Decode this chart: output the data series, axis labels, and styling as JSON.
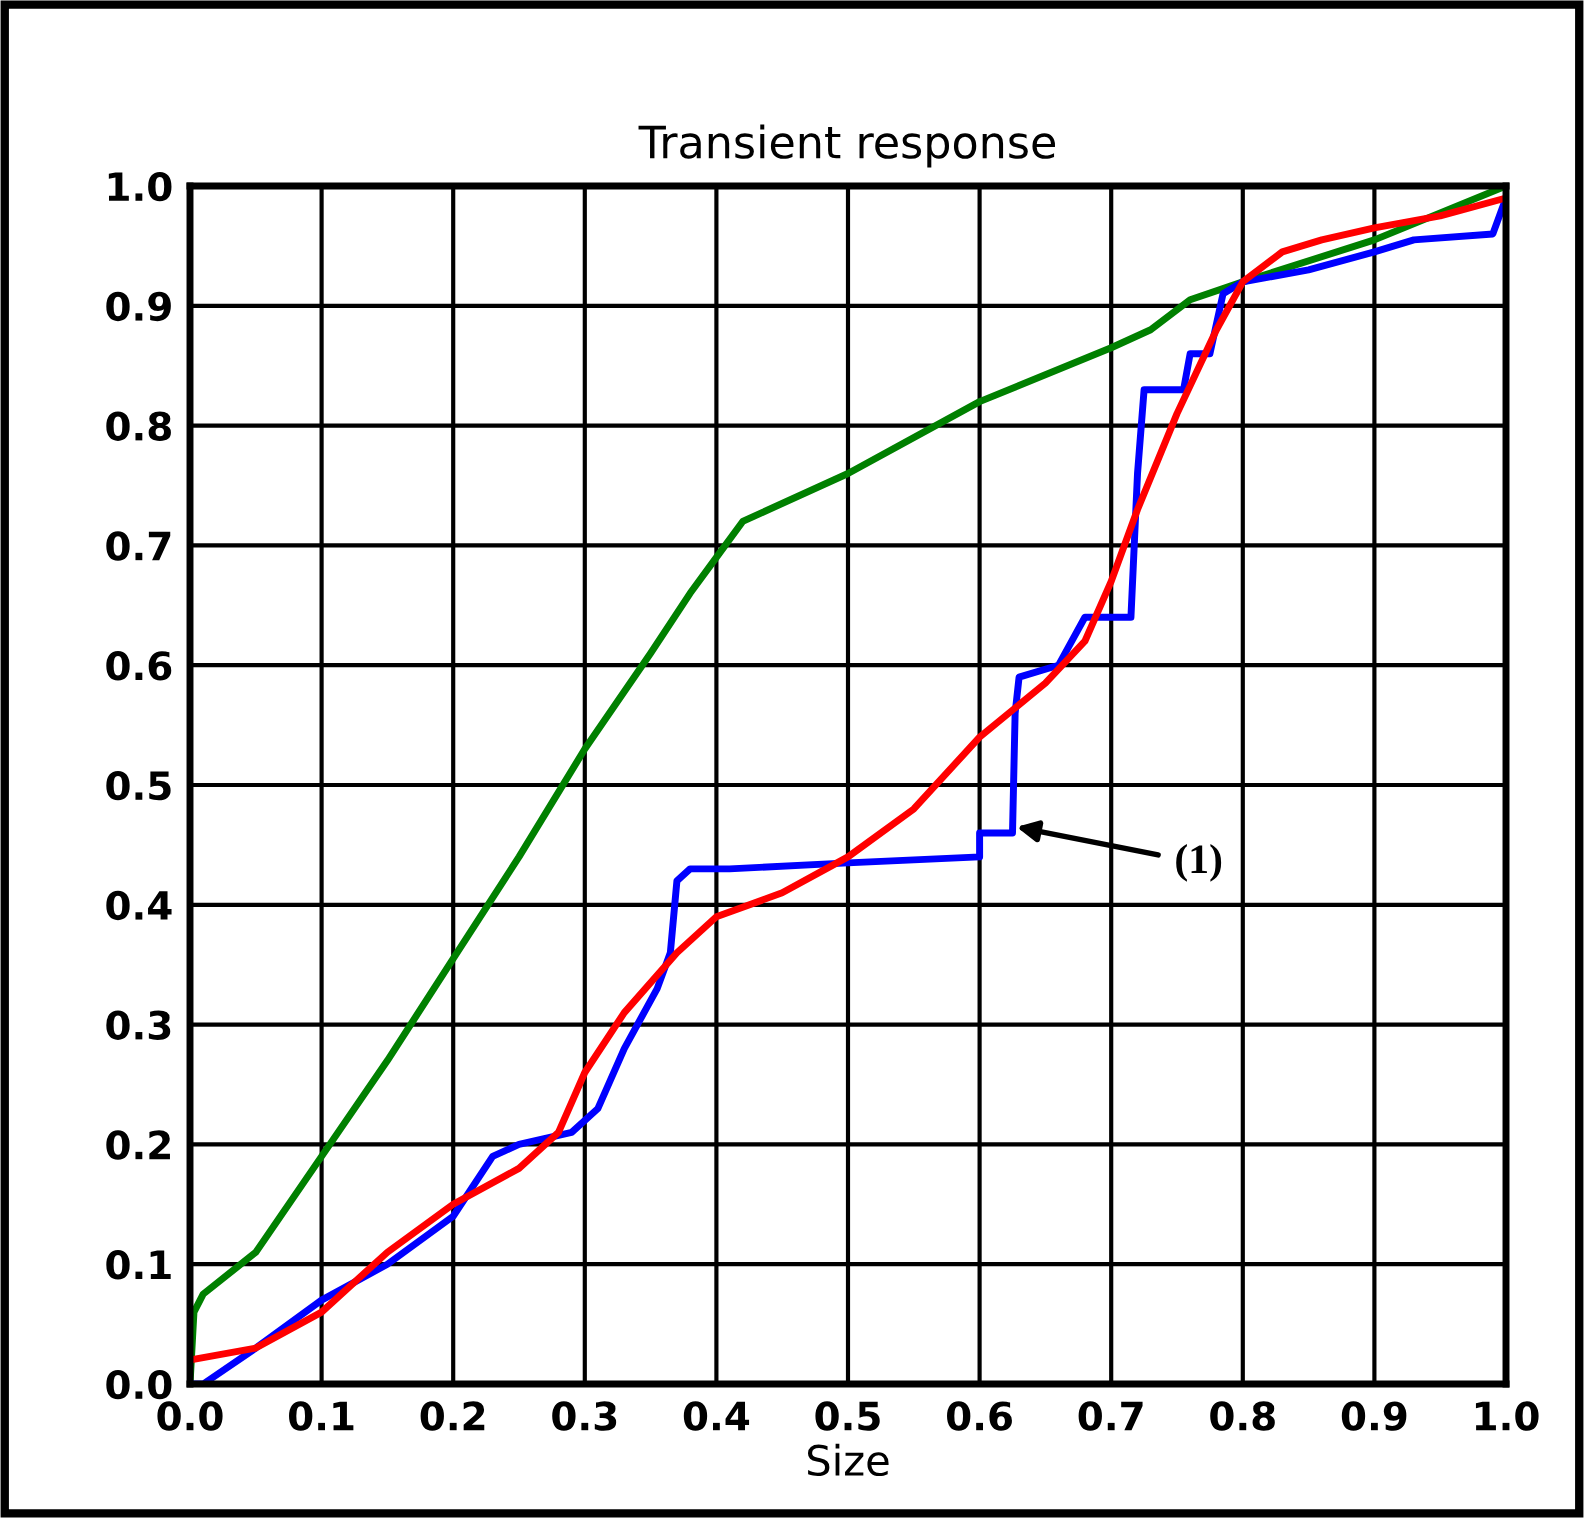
{
  "chart_data": {
    "type": "line",
    "title": "Transient response",
    "xlabel": "Size",
    "xlim": [
      0,
      1
    ],
    "ylim": [
      0,
      1
    ],
    "xticks": [
      {
        "value": 0,
        "label": "0.0"
      },
      0.1,
      0.2,
      0.3,
      0.4,
      0.5,
      0.6,
      0.7,
      0.8,
      0.9,
      {
        "value": 1,
        "label": "1.0"
      }
    ],
    "yticks": [
      {
        "value": 0,
        "label": "0.0"
      },
      0.1,
      0.2,
      0.3,
      0.4,
      0.5,
      0.6,
      0.7,
      0.8,
      0.9,
      {
        "value": 1,
        "label": "1.0"
      }
    ],
    "grid": true,
    "marker": "none",
    "line_style": "solid",
    "annotations": [
      {
        "text": "(1)",
        "x": 0.628,
        "y": 0.465
      }
    ],
    "series": [
      {
        "color": "#008000",
        "x": [
          0,
          0.003,
          0.01,
          0.05,
          0.1,
          0.15,
          0.2,
          0.25,
          0.3,
          0.35,
          0.38,
          0.4,
          0.42,
          0.5,
          0.6,
          0.7,
          0.73,
          0.76,
          0.8,
          0.9,
          1.0
        ],
        "values": [
          0,
          0.06,
          0.075,
          0.11,
          0.19,
          0.27,
          0.355,
          0.44,
          0.53,
          0.61,
          0.66,
          0.69,
          0.72,
          0.76,
          0.82,
          0.865,
          0.88,
          0.905,
          0.92,
          0.955,
          1.0
        ]
      },
      {
        "color": "#0000ff",
        "x": [
          0,
          0.01,
          0.05,
          0.1,
          0.15,
          0.2,
          0.23,
          0.25,
          0.29,
          0.31,
          0.33,
          0.355,
          0.365,
          0.37,
          0.38,
          0.41,
          0.5,
          0.6,
          0.6,
          0.625,
          0.627,
          0.63,
          0.66,
          0.68,
          0.715,
          0.72,
          0.725,
          0.755,
          0.76,
          0.775,
          0.785,
          0.8,
          0.85,
          0.9,
          0.93,
          0.99,
          1.0
        ],
        "values": [
          0,
          0,
          0.03,
          0.07,
          0.1,
          0.14,
          0.19,
          0.2,
          0.21,
          0.23,
          0.28,
          0.33,
          0.36,
          0.42,
          0.43,
          0.43,
          0.435,
          0.44,
          0.46,
          0.46,
          0.56,
          0.59,
          0.6,
          0.64,
          0.64,
          0.76,
          0.83,
          0.83,
          0.86,
          0.86,
          0.91,
          0.92,
          0.93,
          0.945,
          0.955,
          0.96,
          0.99
        ]
      },
      {
        "color": "#ff0000",
        "x": [
          0,
          0.05,
          0.1,
          0.15,
          0.2,
          0.25,
          0.28,
          0.3,
          0.33,
          0.37,
          0.4,
          0.45,
          0.5,
          0.55,
          0.6,
          0.65,
          0.68,
          0.7,
          0.72,
          0.75,
          0.78,
          0.8,
          0.83,
          0.86,
          0.9,
          0.95,
          1.0
        ],
        "values": [
          0.02,
          0.03,
          0.06,
          0.11,
          0.15,
          0.18,
          0.21,
          0.26,
          0.31,
          0.36,
          0.39,
          0.41,
          0.44,
          0.48,
          0.54,
          0.585,
          0.62,
          0.67,
          0.73,
          0.81,
          0.88,
          0.92,
          0.945,
          0.955,
          0.965,
          0.975,
          0.99
        ]
      }
    ]
  }
}
